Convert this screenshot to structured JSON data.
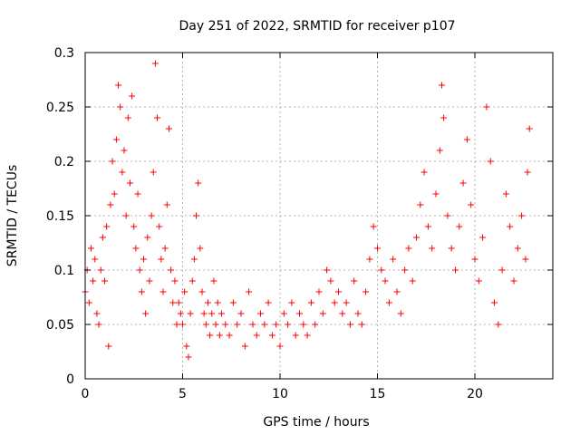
{
  "chart_data": {
    "type": "scatter",
    "title": "Day 251 of 2022, SRMTID for receiver p107",
    "xlabel": "GPS time / hours",
    "ylabel": "SRMTID / TECUs",
    "xlim": [
      0,
      24
    ],
    "ylim": [
      0,
      0.3
    ],
    "x_ticks": [
      0,
      5,
      10,
      15,
      20
    ],
    "x_tick_labels": [
      "0",
      "5",
      "10",
      "15",
      "20"
    ],
    "y_ticks": [
      0,
      0.05,
      0.1,
      0.15,
      0.2,
      0.25,
      0.3
    ],
    "y_tick_labels": [
      "0",
      "0.05",
      "0.1",
      "0.15",
      "0.2",
      "0.25",
      "0.3"
    ],
    "grid": true,
    "marker": "+",
    "series": [
      {
        "name": "SRMTID",
        "color": "#ff0000",
        "points": [
          [
            0.0,
            0.08
          ],
          [
            0.1,
            0.1
          ],
          [
            0.2,
            0.07
          ],
          [
            0.3,
            0.12
          ],
          [
            0.4,
            0.09
          ],
          [
            0.5,
            0.11
          ],
          [
            0.6,
            0.06
          ],
          [
            0.7,
            0.05
          ],
          [
            0.8,
            0.1
          ],
          [
            0.9,
            0.13
          ],
          [
            1.0,
            0.09
          ],
          [
            1.1,
            0.14
          ],
          [
            1.2,
            0.03
          ],
          [
            1.3,
            0.16
          ],
          [
            1.4,
            0.2
          ],
          [
            1.5,
            0.17
          ],
          [
            1.6,
            0.22
          ],
          [
            1.7,
            0.27
          ],
          [
            1.8,
            0.25
          ],
          [
            1.9,
            0.19
          ],
          [
            2.0,
            0.21
          ],
          [
            2.1,
            0.15
          ],
          [
            2.2,
            0.24
          ],
          [
            2.3,
            0.18
          ],
          [
            2.4,
            0.26
          ],
          [
            2.5,
            0.14
          ],
          [
            2.6,
            0.12
          ],
          [
            2.7,
            0.17
          ],
          [
            2.8,
            0.1
          ],
          [
            2.9,
            0.08
          ],
          [
            3.0,
            0.11
          ],
          [
            3.1,
            0.06
          ],
          [
            3.2,
            0.13
          ],
          [
            3.3,
            0.09
          ],
          [
            3.4,
            0.15
          ],
          [
            3.5,
            0.19
          ],
          [
            3.6,
            0.29
          ],
          [
            3.7,
            0.24
          ],
          [
            3.8,
            0.14
          ],
          [
            3.9,
            0.11
          ],
          [
            4.0,
            0.08
          ],
          [
            4.1,
            0.12
          ],
          [
            4.2,
            0.16
          ],
          [
            4.3,
            0.23
          ],
          [
            4.4,
            0.1
          ],
          [
            4.5,
            0.07
          ],
          [
            4.6,
            0.09
          ],
          [
            4.7,
            0.05
          ],
          [
            4.8,
            0.07
          ],
          [
            4.9,
            0.06
          ],
          [
            5.0,
            0.05
          ],
          [
            5.1,
            0.08
          ],
          [
            5.2,
            0.03
          ],
          [
            5.3,
            0.02
          ],
          [
            5.4,
            0.06
          ],
          [
            5.5,
            0.09
          ],
          [
            5.6,
            0.11
          ],
          [
            5.7,
            0.15
          ],
          [
            5.8,
            0.18
          ],
          [
            5.9,
            0.12
          ],
          [
            6.0,
            0.08
          ],
          [
            6.1,
            0.06
          ],
          [
            6.2,
            0.05
          ],
          [
            6.3,
            0.07
          ],
          [
            6.4,
            0.04
          ],
          [
            6.5,
            0.06
          ],
          [
            6.6,
            0.09
          ],
          [
            6.7,
            0.05
          ],
          [
            6.8,
            0.07
          ],
          [
            6.9,
            0.04
          ],
          [
            7.0,
            0.06
          ],
          [
            7.2,
            0.05
          ],
          [
            7.4,
            0.04
          ],
          [
            7.6,
            0.07
          ],
          [
            7.8,
            0.05
          ],
          [
            8.0,
            0.06
          ],
          [
            8.2,
            0.03
          ],
          [
            8.4,
            0.08
          ],
          [
            8.6,
            0.05
          ],
          [
            8.8,
            0.04
          ],
          [
            9.0,
            0.06
          ],
          [
            9.2,
            0.05
          ],
          [
            9.4,
            0.07
          ],
          [
            9.6,
            0.04
          ],
          [
            9.8,
            0.05
          ],
          [
            10.0,
            0.03
          ],
          [
            10.2,
            0.06
          ],
          [
            10.4,
            0.05
          ],
          [
            10.6,
            0.07
          ],
          [
            10.8,
            0.04
          ],
          [
            11.0,
            0.06
          ],
          [
            11.2,
            0.05
          ],
          [
            11.4,
            0.04
          ],
          [
            11.6,
            0.07
          ],
          [
            11.8,
            0.05
          ],
          [
            12.0,
            0.08
          ],
          [
            12.2,
            0.06
          ],
          [
            12.4,
            0.1
          ],
          [
            12.6,
            0.09
          ],
          [
            12.8,
            0.07
          ],
          [
            13.0,
            0.08
          ],
          [
            13.2,
            0.06
          ],
          [
            13.4,
            0.07
          ],
          [
            13.6,
            0.05
          ],
          [
            13.8,
            0.09
          ],
          [
            14.0,
            0.06
          ],
          [
            14.2,
            0.05
          ],
          [
            14.4,
            0.08
          ],
          [
            14.6,
            0.11
          ],
          [
            14.8,
            0.14
          ],
          [
            15.0,
            0.12
          ],
          [
            15.2,
            0.1
          ],
          [
            15.4,
            0.09
          ],
          [
            15.6,
            0.07
          ],
          [
            15.8,
            0.11
          ],
          [
            16.0,
            0.08
          ],
          [
            16.2,
            0.06
          ],
          [
            16.4,
            0.1
          ],
          [
            16.6,
            0.12
          ],
          [
            16.8,
            0.09
          ],
          [
            17.0,
            0.13
          ],
          [
            17.2,
            0.16
          ],
          [
            17.4,
            0.19
          ],
          [
            17.6,
            0.14
          ],
          [
            17.8,
            0.12
          ],
          [
            18.0,
            0.17
          ],
          [
            18.2,
            0.21
          ],
          [
            18.3,
            0.27
          ],
          [
            18.4,
            0.24
          ],
          [
            18.6,
            0.15
          ],
          [
            18.8,
            0.12
          ],
          [
            19.0,
            0.1
          ],
          [
            19.2,
            0.14
          ],
          [
            19.4,
            0.18
          ],
          [
            19.6,
            0.22
          ],
          [
            19.8,
            0.16
          ],
          [
            20.0,
            0.11
          ],
          [
            20.2,
            0.09
          ],
          [
            20.4,
            0.13
          ],
          [
            20.6,
            0.25
          ],
          [
            20.8,
            0.2
          ],
          [
            21.0,
            0.07
          ],
          [
            21.2,
            0.05
          ],
          [
            21.4,
            0.1
          ],
          [
            21.6,
            0.17
          ],
          [
            21.8,
            0.14
          ],
          [
            22.0,
            0.09
          ],
          [
            22.2,
            0.12
          ],
          [
            22.4,
            0.15
          ],
          [
            22.6,
            0.11
          ],
          [
            22.7,
            0.19
          ],
          [
            22.8,
            0.23
          ]
        ]
      }
    ]
  }
}
